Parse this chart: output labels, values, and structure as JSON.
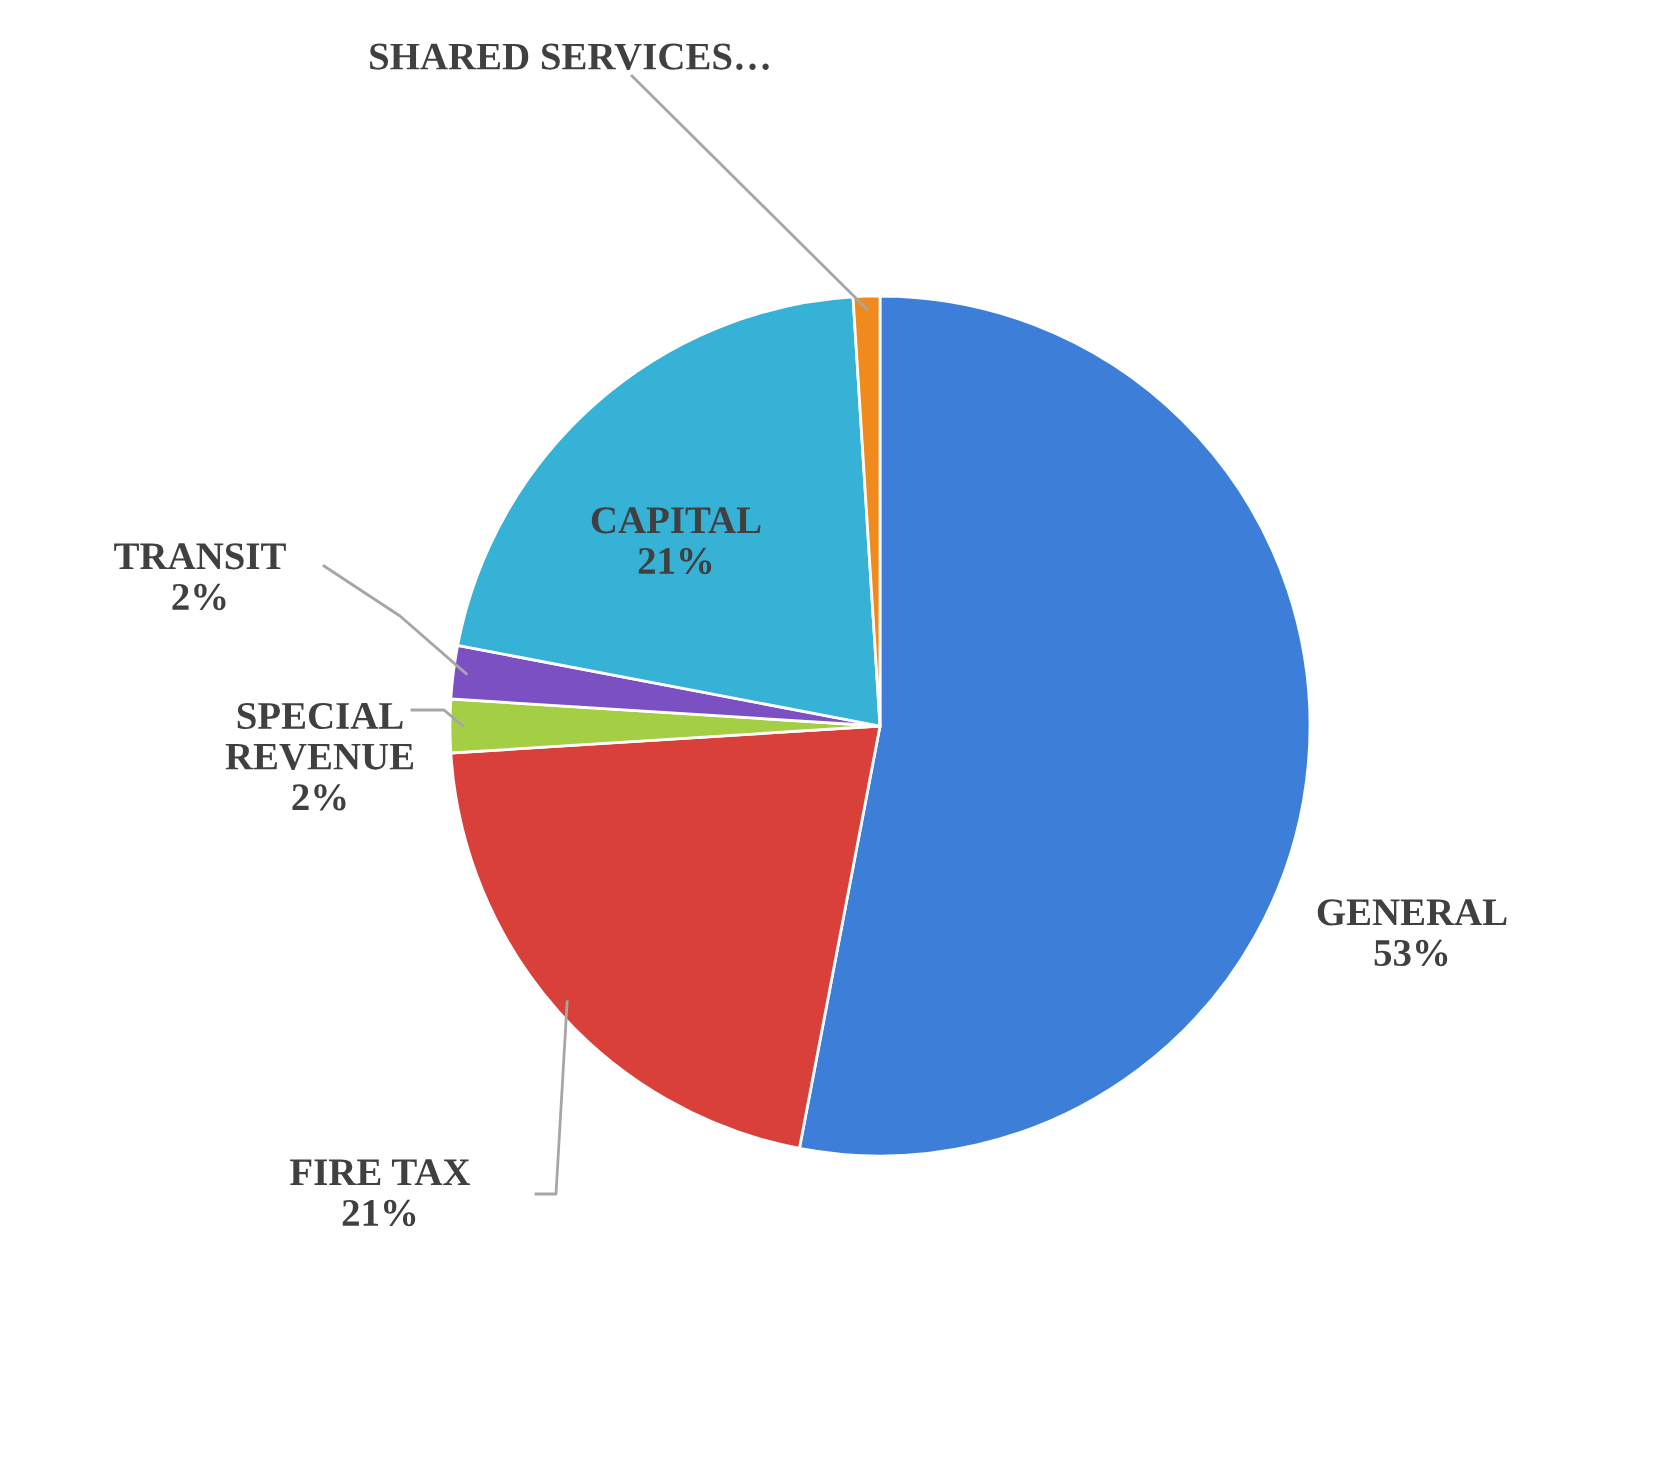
{
  "chart_data": {
    "type": "pie",
    "categories": [
      "GENERAL",
      "FIRE TAX",
      "SPECIAL REVENUE",
      "TRANSIT",
      "CAPITAL",
      "SHARED SERVICES…"
    ],
    "values": [
      53,
      21,
      2,
      2,
      21,
      1
    ],
    "value_labels": [
      "53%",
      "21%",
      "2%",
      "2%",
      "21%",
      null
    ],
    "colors": [
      "#3d7fd8",
      "#d9403a",
      "#a4cf45",
      "#7b50c2",
      "#36b2d6",
      "#f08a1c"
    ],
    "legend": false
  }
}
